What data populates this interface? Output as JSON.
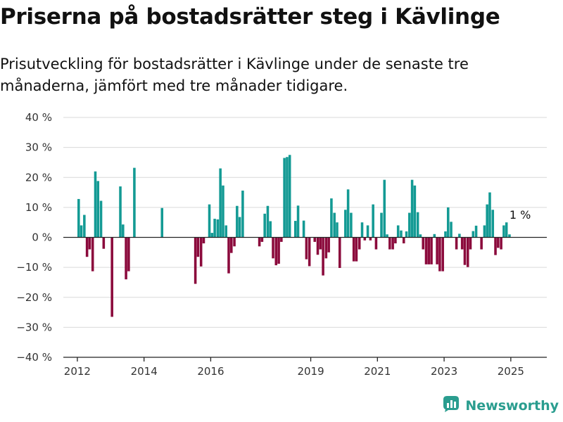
{
  "title": "Priserna på bostadsrätter steg i Kävlinge",
  "subtitle": "Prisutveckling för bostadsrätter i Kävlinge under de senaste tre månaderna, jämfört med tre månader tidigare.",
  "brand": {
    "name": "Newsworthy",
    "logo_icon": "bar-chart-logo-icon"
  },
  "colors": {
    "positive": "#139a94",
    "negative": "#8b0a3c",
    "grid": "#d9d9d9",
    "axis": "#222222",
    "brand": "#2a9d8f"
  },
  "chart_data": {
    "type": "bar",
    "title": "Priserna på bostadsrätter steg i Kävlinge",
    "xlabel": "",
    "ylabel": "",
    "ylim": [
      -40,
      40
    ],
    "yticks": [
      40,
      30,
      20,
      10,
      0,
      -10,
      -20,
      -30,
      -40
    ],
    "ytick_labels": [
      "40 %",
      "30 %",
      "20 %",
      "10 %",
      "0 %",
      "−10 %",
      "−20 %",
      "−30 %",
      "−40 %"
    ],
    "x_axis": "year",
    "xlim": [
      2011.58,
      2026.08
    ],
    "xticks": [
      2012,
      2014,
      2016,
      2019,
      2021,
      2023,
      2025
    ],
    "xtick_labels": [
      "2012",
      "2014",
      "2016",
      "2019",
      "2021",
      "2023",
      "2025"
    ],
    "grid": true,
    "legend": "none",
    "annotation": {
      "text": "1 %",
      "x": 2025.0,
      "y": 1
    },
    "points": [
      [
        2012.04,
        12.8
      ],
      [
        2012.12,
        4
      ],
      [
        2012.21,
        7.5
      ],
      [
        2012.29,
        -6.5
      ],
      [
        2012.37,
        -4
      ],
      [
        2012.46,
        -11.3
      ],
      [
        2012.54,
        22
      ],
      [
        2012.62,
        18.8
      ],
      [
        2012.71,
        12.2
      ],
      [
        2012.79,
        -3.8
      ],
      [
        2013.04,
        -26.5
      ],
      [
        2013.29,
        17
      ],
      [
        2013.37,
        4.3
      ],
      [
        2013.46,
        -14
      ],
      [
        2013.54,
        -11.3
      ],
      [
        2013.71,
        23.2
      ],
      [
        2014.54,
        9.8
      ],
      [
        2015.54,
        -15.5
      ],
      [
        2015.62,
        -6.5
      ],
      [
        2015.71,
        -9.7
      ],
      [
        2015.79,
        -2
      ],
      [
        2015.96,
        11
      ],
      [
        2016.04,
        1.5
      ],
      [
        2016.12,
        6.2
      ],
      [
        2016.21,
        6
      ],
      [
        2016.29,
        23
      ],
      [
        2016.37,
        17.3
      ],
      [
        2016.46,
        4
      ],
      [
        2016.54,
        -12
      ],
      [
        2016.62,
        -5.2
      ],
      [
        2016.71,
        -3
      ],
      [
        2016.79,
        10.5
      ],
      [
        2016.87,
        6.8
      ],
      [
        2016.96,
        15.6
      ],
      [
        2017.46,
        -3
      ],
      [
        2017.54,
        -1.5
      ],
      [
        2017.62,
        7.9
      ],
      [
        2017.71,
        10.5
      ],
      [
        2017.79,
        5.4
      ],
      [
        2017.87,
        -7
      ],
      [
        2017.96,
        -9.3
      ],
      [
        2018.04,
        -8.8
      ],
      [
        2018.12,
        -1.5
      ],
      [
        2018.21,
        26.5
      ],
      [
        2018.29,
        26.8
      ],
      [
        2018.37,
        27.5
      ],
      [
        2018.54,
        5.5
      ],
      [
        2018.62,
        10.6
      ],
      [
        2018.79,
        5.6
      ],
      [
        2018.87,
        -7.3
      ],
      [
        2018.96,
        -9.6
      ],
      [
        2019.12,
        -1.5
      ],
      [
        2019.21,
        -5.8
      ],
      [
        2019.29,
        -4
      ],
      [
        2019.37,
        -12.7
      ],
      [
        2019.46,
        -7
      ],
      [
        2019.54,
        -5
      ],
      [
        2019.62,
        13
      ],
      [
        2019.71,
        8.2
      ],
      [
        2019.79,
        5
      ],
      [
        2019.87,
        -10.2
      ],
      [
        2020.04,
        9.2
      ],
      [
        2020.12,
        16
      ],
      [
        2020.21,
        8.2
      ],
      [
        2020.29,
        -8
      ],
      [
        2020.37,
        -8
      ],
      [
        2020.46,
        -4
      ],
      [
        2020.54,
        5
      ],
      [
        2020.62,
        -1
      ],
      [
        2020.71,
        4
      ],
      [
        2020.79,
        -1
      ],
      [
        2020.87,
        11
      ],
      [
        2020.96,
        -4
      ],
      [
        2021.12,
        8.2
      ],
      [
        2021.21,
        19.2
      ],
      [
        2021.29,
        1
      ],
      [
        2021.37,
        -4
      ],
      [
        2021.46,
        -4
      ],
      [
        2021.54,
        -2
      ],
      [
        2021.62,
        4
      ],
      [
        2021.71,
        2.3
      ],
      [
        2021.79,
        -2
      ],
      [
        2021.87,
        2
      ],
      [
        2021.96,
        8.2
      ],
      [
        2022.04,
        19.2
      ],
      [
        2022.12,
        17.3
      ],
      [
        2022.21,
        8.4
      ],
      [
        2022.29,
        1
      ],
      [
        2022.37,
        -4
      ],
      [
        2022.46,
        -9
      ],
      [
        2022.54,
        -9
      ],
      [
        2022.62,
        -9
      ],
      [
        2022.71,
        1.1
      ],
      [
        2022.79,
        -9
      ],
      [
        2022.87,
        -11.3
      ],
      [
        2022.96,
        -11.3
      ],
      [
        2023.04,
        2
      ],
      [
        2023.12,
        10
      ],
      [
        2023.21,
        5.2
      ],
      [
        2023.37,
        -4
      ],
      [
        2023.46,
        1.2
      ],
      [
        2023.54,
        -4
      ],
      [
        2023.62,
        -9.2
      ],
      [
        2023.71,
        -9.9
      ],
      [
        2023.79,
        -4
      ],
      [
        2023.87,
        2.1
      ],
      [
        2023.96,
        3.9
      ],
      [
        2024.12,
        -4
      ],
      [
        2024.21,
        4
      ],
      [
        2024.29,
        11
      ],
      [
        2024.37,
        15
      ],
      [
        2024.46,
        9.2
      ],
      [
        2024.54,
        -5.9
      ],
      [
        2024.62,
        -3.5
      ],
      [
        2024.71,
        -4
      ],
      [
        2024.79,
        4
      ],
      [
        2024.87,
        5
      ],
      [
        2024.96,
        1
      ]
    ]
  }
}
